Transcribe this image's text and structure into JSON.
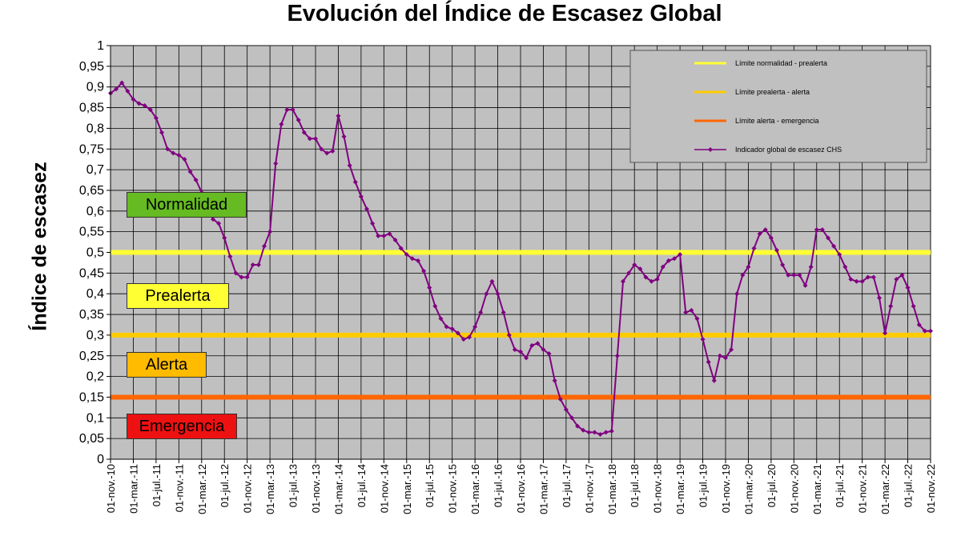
{
  "chart_data": {
    "type": "line",
    "title": "Evolución del Índice de Escasez Global",
    "ylabel": "Índice de escasez",
    "xlabel": "",
    "ylim": [
      0,
      1
    ],
    "y_ticks": [
      "0",
      "0,05",
      "0,1",
      "0,15",
      "0,2",
      "0,25",
      "0,3",
      "0,35",
      "0,4",
      "0,45",
      "0,5",
      "0,55",
      "0,6",
      "0,65",
      "0,7",
      "0,75",
      "0,8",
      "0,85",
      "0,9",
      "0,95",
      "1"
    ],
    "x_ticks": [
      "01-nov.-10",
      "01-mar.-11",
      "01-jul.-11",
      "01-nov.-11",
      "01-mar.-12",
      "01-jul.-12",
      "01-nov.-12",
      "01-mar.-13",
      "01-jul.-13",
      "01-nov.-13",
      "01-mar.-14",
      "01-jul.-14",
      "01-nov.-14",
      "01-mar.-15",
      "01-jul.-15",
      "01-nov.-15",
      "01-mar.-16",
      "01-jul.-16",
      "01-nov.-16",
      "01-mar.-17",
      "01-jul.-17",
      "01-nov.-17",
      "01-mar.-18",
      "01-jul.-18",
      "01-nov.-18",
      "01-mar.-19",
      "01-jul.-19",
      "01-nov.-19",
      "01-mar.-20",
      "01-jul.-20",
      "01-nov.-20",
      "01-mar.-21",
      "01-jul.-21",
      "01-nov.-21",
      "01-mar.-22",
      "01-jul.-22",
      "01-nov.-22"
    ],
    "grid": true,
    "thresholds": [
      {
        "name": "Límite normalidad - prealerta",
        "value": 0.5,
        "color": "#ffff33"
      },
      {
        "name": "Límite prealerta - alerta",
        "value": 0.3,
        "color": "#ffcc00"
      },
      {
        "name": "Límite alerta - emergencia",
        "value": 0.15,
        "color": "#ff6600"
      }
    ],
    "series": [
      {
        "name": "Indicador global de escasez CHS",
        "color": "#800080",
        "values": [
          0.885,
          0.895,
          0.91,
          0.89,
          0.87,
          0.86,
          0.855,
          0.845,
          0.825,
          0.79,
          0.75,
          0.74,
          0.735,
          0.725,
          0.695,
          0.675,
          0.645,
          0.61,
          0.58,
          0.57,
          0.535,
          0.49,
          0.45,
          0.44,
          0.44,
          0.47,
          0.47,
          0.515,
          0.55,
          0.715,
          0.81,
          0.845,
          0.845,
          0.82,
          0.79,
          0.775,
          0.775,
          0.75,
          0.74,
          0.745,
          0.83,
          0.78,
          0.71,
          0.67,
          0.635,
          0.605,
          0.57,
          0.54,
          0.54,
          0.545,
          0.53,
          0.51,
          0.495,
          0.485,
          0.48,
          0.455,
          0.415,
          0.37,
          0.34,
          0.32,
          0.315,
          0.305,
          0.29,
          0.295,
          0.32,
          0.355,
          0.4,
          0.43,
          0.4,
          0.355,
          0.3,
          0.265,
          0.26,
          0.245,
          0.275,
          0.28,
          0.265,
          0.255,
          0.19,
          0.145,
          0.12,
          0.1,
          0.08,
          0.07,
          0.065,
          0.065,
          0.06,
          0.065,
          0.068,
          0.25,
          0.43,
          0.45,
          0.47,
          0.46,
          0.44,
          0.43,
          0.435,
          0.465,
          0.48,
          0.485,
          0.495,
          0.355,
          0.36,
          0.34,
          0.29,
          0.235,
          0.19,
          0.25,
          0.245,
          0.265,
          0.4,
          0.445,
          0.465,
          0.51,
          0.545,
          0.555,
          0.535,
          0.505,
          0.47,
          0.445,
          0.445,
          0.445,
          0.42,
          0.465,
          0.555,
          0.555,
          0.535,
          0.515,
          0.495,
          0.465,
          0.435,
          0.43,
          0.43,
          0.44,
          0.44,
          0.39,
          0.305,
          0.37,
          0.435,
          0.445,
          0.415,
          0.37,
          0.325,
          0.31,
          0.31
        ]
      }
    ],
    "zones": [
      {
        "label": "Normalidad",
        "color": "#66bb22"
      },
      {
        "label": "Prealerta",
        "color": "#ffff33"
      },
      {
        "label": "Alerta",
        "color": "#ffbb00"
      },
      {
        "label": "Emergencia",
        "color": "#ee1111"
      }
    ],
    "legend": {
      "placement": "top-right"
    },
    "colors": {
      "plot_background": "#c0c0c0",
      "grid": "#000000"
    }
  }
}
